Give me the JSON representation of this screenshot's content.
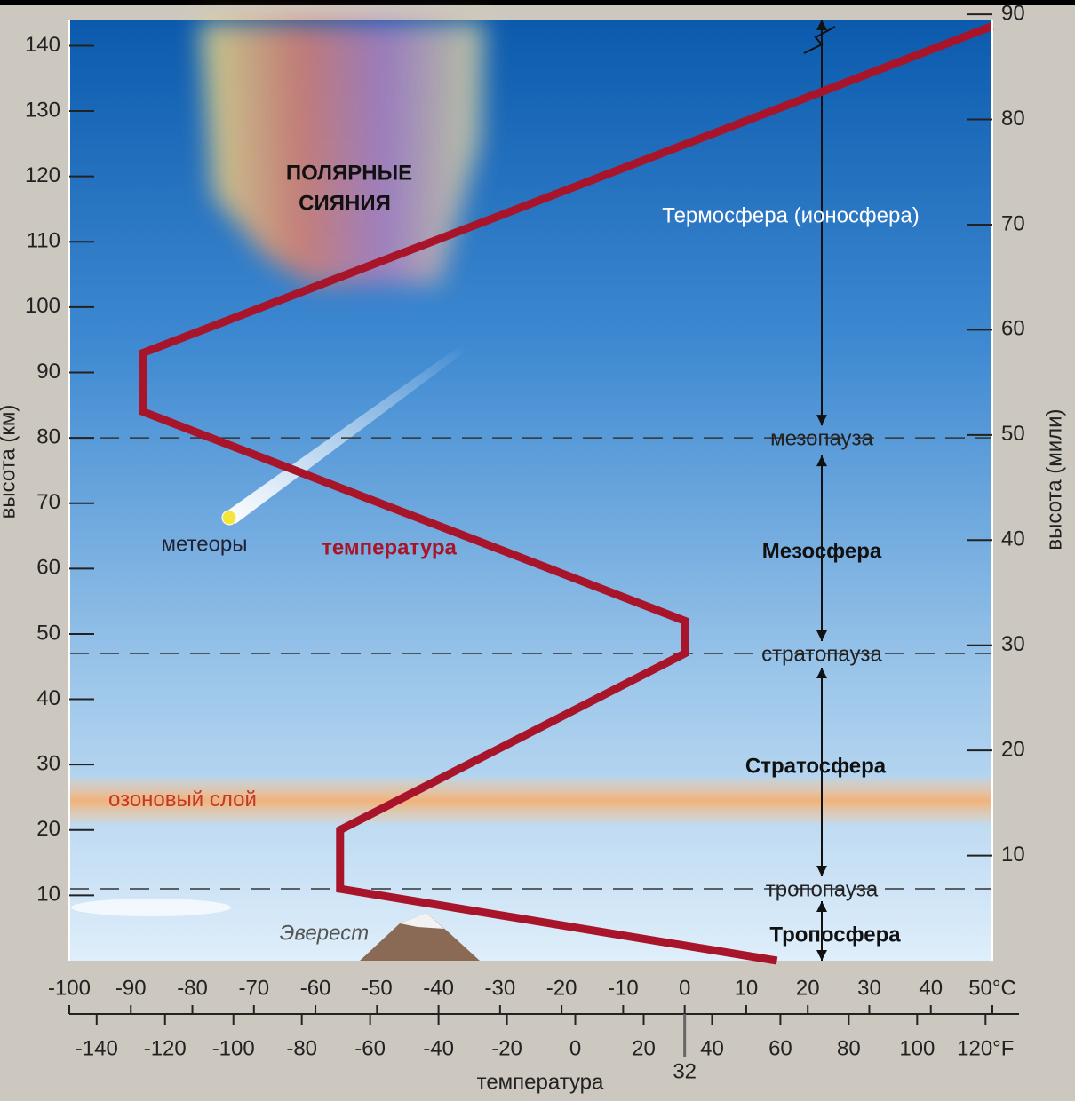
{
  "chart_data": {
    "type": "line",
    "y_label": "высота (км)",
    "y2_label": "высота (мили)",
    "x_label": "температура",
    "xlim": [
      -100,
      50
    ],
    "xticks": [
      -100,
      -90,
      -80,
      -70,
      -60,
      -50,
      -40,
      -30,
      -20,
      -10,
      0,
      10,
      20,
      30,
      40,
      {
        "value": 50,
        "label": "50°C"
      }
    ],
    "x2lim": [
      -148,
      122
    ],
    "x2ticks": [
      -140,
      -120,
      -100,
      -80,
      -60,
      -40,
      -20,
      0,
      20,
      40,
      60,
      80,
      100,
      {
        "value": 120,
        "label": "120°F"
      }
    ],
    "x2_marker": 32,
    "ylim": [
      0,
      144
    ],
    "yticks": [
      10,
      20,
      30,
      40,
      50,
      60,
      70,
      80,
      90,
      100,
      110,
      120,
      130,
      140
    ],
    "y2lim": [
      0,
      89.5
    ],
    "y2ticks": [
      10,
      20,
      30,
      40,
      50,
      60,
      70,
      80,
      90
    ],
    "series": [
      {
        "name": "температура",
        "color": "#a8152a",
        "x": [
          15,
          -56,
          -56,
          0,
          0,
          -88,
          -88,
          50
        ],
        "values": [
          0,
          11,
          20,
          47,
          52,
          84,
          93,
          143
        ]
      }
    ],
    "levels": [
      {
        "name": "мезопауза",
        "value": 80
      },
      {
        "name": "стратопауза",
        "value": 47
      },
      {
        "name": "тропопауза",
        "value": 11
      }
    ],
    "layers": [
      "Термосфера (ионосфера)",
      "Мезосфера",
      "Стратосфера",
      "Тропосфера"
    ],
    "ozone": {
      "label": "озоновый слой",
      "range": [
        21,
        28
      ]
    },
    "annotations": [
      "ПОЛЯРНЫЕ",
      "СИЯНИЯ",
      "метеоры",
      "Эверест"
    ]
  }
}
